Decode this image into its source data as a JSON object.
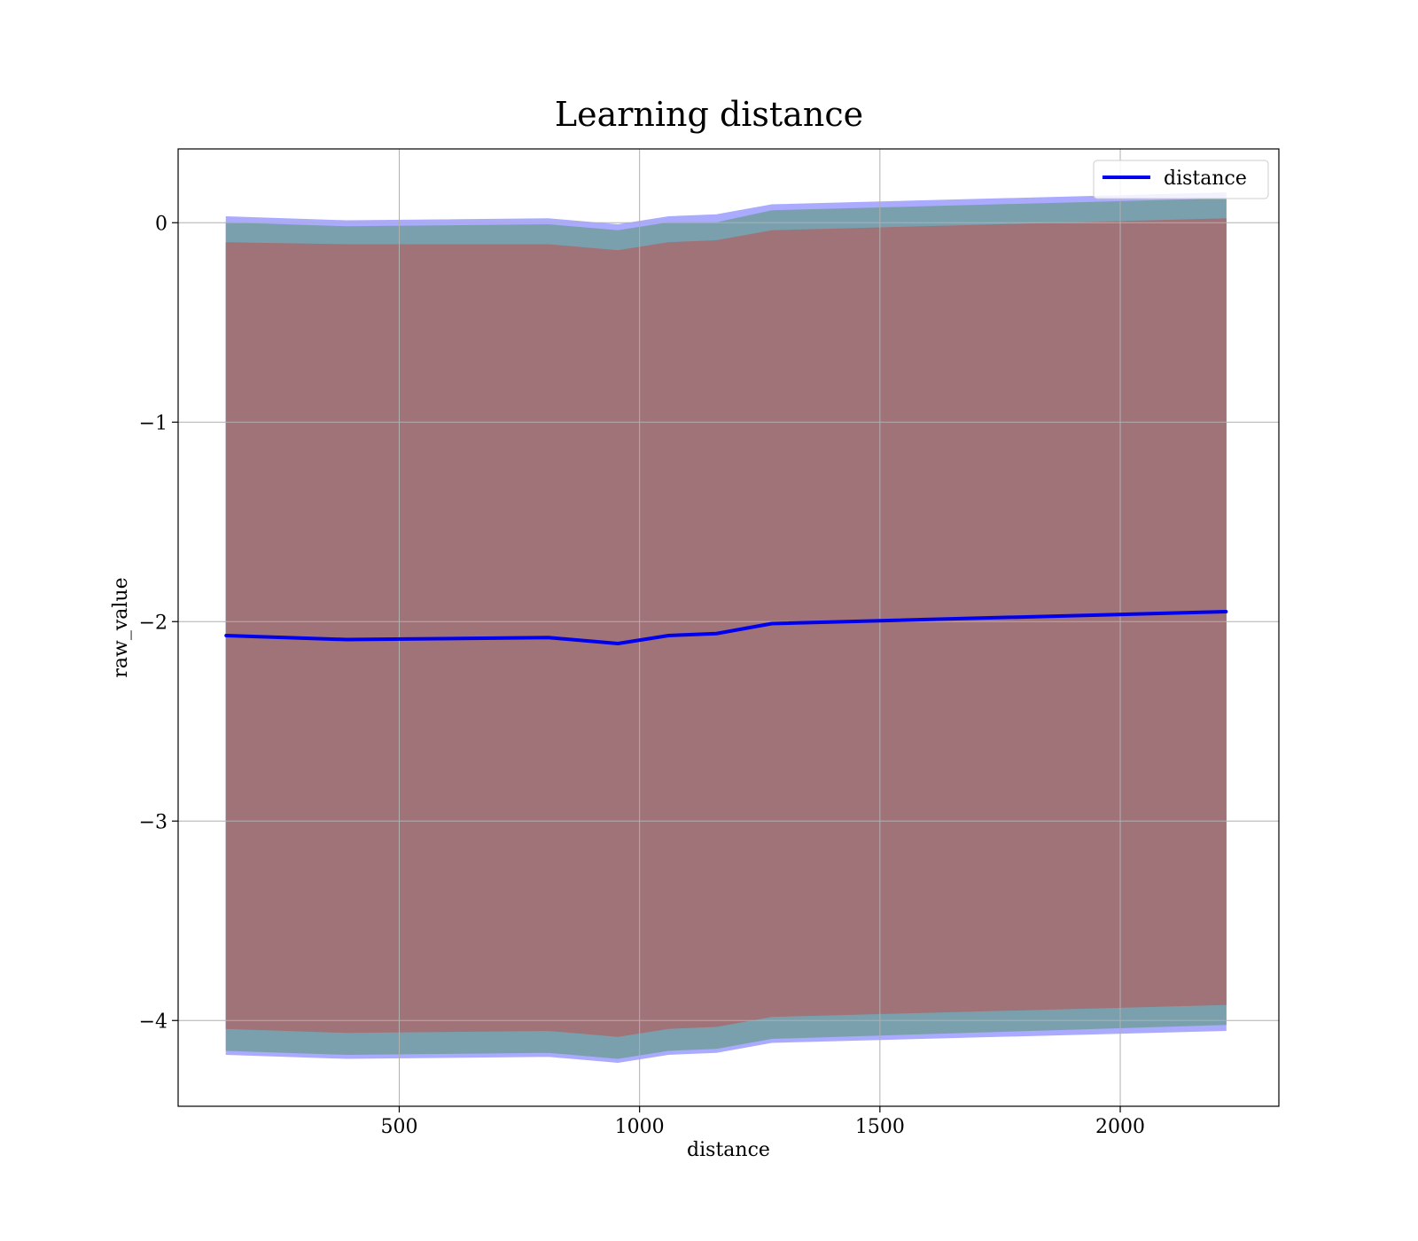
{
  "chart_data": {
    "type": "line",
    "title": "Learning distance",
    "xlabel": "distance",
    "ylabel": "raw_value",
    "xlim": [
      40,
      2330
    ],
    "ylim": [
      -4.43,
      0.37
    ],
    "grid": true,
    "legend_position": "top-right",
    "x_ticks": [
      500,
      1000,
      1500,
      2000
    ],
    "x_tick_labels": [
      "500",
      "1000",
      "1500",
      "2000"
    ],
    "y_ticks": [
      0,
      -1,
      -2,
      -3,
      -4
    ],
    "y_tick_labels": [
      "0",
      "−1",
      "−2",
      "−3",
      "−4"
    ],
    "x": [
      140,
      390,
      810,
      955,
      1060,
      1160,
      1275,
      2220
    ],
    "series": [
      {
        "name": "distance",
        "values": [
          -2.07,
          -2.09,
          -2.08,
          -2.11,
          -2.07,
          -2.06,
          -2.01,
          -1.95
        ],
        "color": "#0000ee"
      }
    ],
    "bands": [
      {
        "color": "#aaaaff",
        "lower": [
          -4.17,
          -4.19,
          -4.18,
          -4.21,
          -4.17,
          -4.16,
          -4.11,
          -4.05
        ],
        "upper": [
          0.03,
          0.01,
          0.02,
          -0.01,
          0.03,
          0.04,
          0.09,
          0.15
        ]
      },
      {
        "color": "#7aa0ad",
        "lower": [
          -4.15,
          -4.17,
          -4.16,
          -4.19,
          -4.15,
          -4.14,
          -4.09,
          -4.02
        ],
        "upper": [
          0.0,
          -0.02,
          -0.01,
          -0.04,
          0.0,
          0.0,
          0.06,
          0.12
        ]
      },
      {
        "color": "#a07379",
        "lower": [
          -4.04,
          -4.06,
          -4.05,
          -4.08,
          -4.04,
          -4.03,
          -3.98,
          -3.92
        ],
        "upper": [
          -0.1,
          -0.11,
          -0.11,
          -0.14,
          -0.1,
          -0.09,
          -0.04,
          0.02
        ]
      }
    ]
  }
}
